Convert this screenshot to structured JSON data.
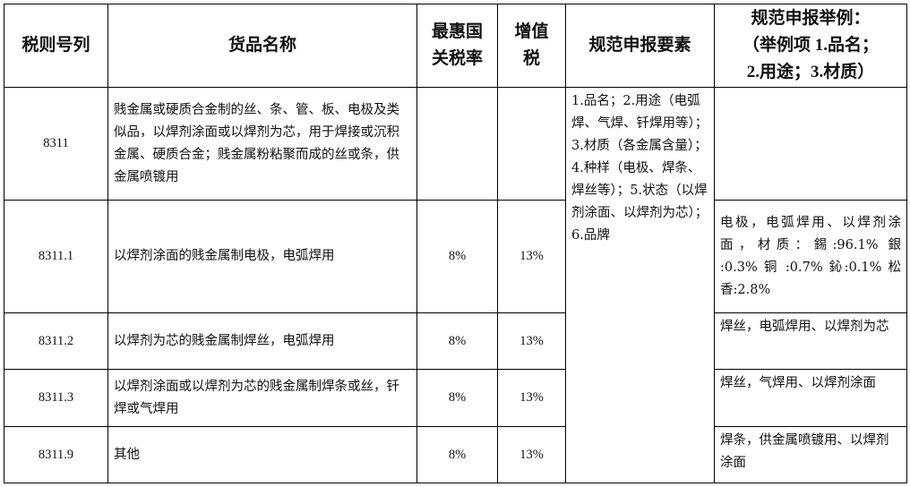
{
  "headers": [
    "税则号列",
    "货品名称",
    "最惠国关税率",
    "增值税",
    "规范申报要素",
    "规范申报举例：（举例项 1.品名；2.用途；3.材质）"
  ],
  "header_lines": {
    "mfn": [
      "最惠国",
      "关税率"
    ],
    "vat": [
      "增值",
      "税"
    ],
    "example": [
      "规范申报举例：",
      "（举例项 1.品名；",
      "2.用途；3.材质）"
    ]
  },
  "declaration_elements": "1.品名；2.用途（电弧焊、气焊、钎焊用等）；3.材质（各金属含量）；4.种样（电极、焊条、焊丝等）；5.状态（以焊剂涂面、以焊剂为芯）；6.品牌",
  "rows": [
    {
      "code": "8311",
      "name": "贱金属或硬质合金制的丝、条、管、板、电极及类似品，以焊剂涂面或以焊剂为芯，用于焊接或沉积金属、硬质合金；贱金属粉粘聚而成的丝或条，供金属喷镀用",
      "mfn": "",
      "vat": "",
      "example": ""
    },
    {
      "code": "8311.1",
      "name": "以焊剂涂面的贱金属制电极，电弧焊用",
      "mfn": "8%",
      "vat": "13%",
      "example": "电极，电弧焊用、以焊剂涂面，材质：錫:96.1% 銀 :0.3% 铜 :0.7% 鈊:0.1% 松香:2.8%"
    },
    {
      "code": "8311.2",
      "name": "以焊剂为芯的贱金属制焊丝，电弧焊用",
      "mfn": "8%",
      "vat": "13%",
      "example": "焊丝，电弧焊用、以焊剂为芯"
    },
    {
      "code": "8311.3",
      "name": "以焊剂涂面或以焊剂为芯的贱金属制焊条或丝，钎焊或气焊用",
      "mfn": "8%",
      "vat": "13%",
      "example": "焊丝，气焊用、以焊剂涂面"
    },
    {
      "code": "8311.9",
      "name": "其他",
      "mfn": "8%",
      "vat": "13%",
      "example": "焊条，供金属喷镀用、以焊剂涂面"
    }
  ]
}
